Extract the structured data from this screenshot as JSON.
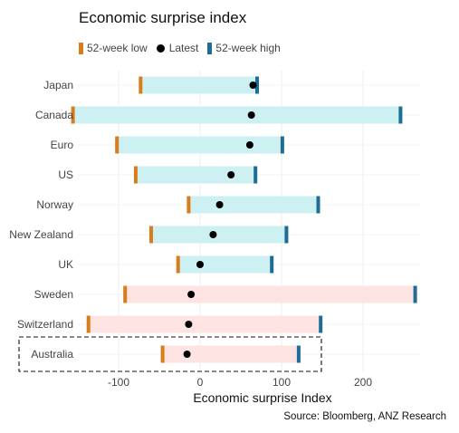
{
  "chart_data": {
    "type": "range-dot",
    "title": "Economic surprise index",
    "xlabel": "Economic surprise Index",
    "ylabel": "",
    "xlim": [
      -170,
      270
    ],
    "xticks": [
      -100,
      0,
      100,
      200
    ],
    "xtick_labels": [
      "-100",
      "0",
      "100",
      "200"
    ],
    "legend": {
      "placement": "top-left",
      "entries": [
        {
          "name": "52-week low",
          "color": "#d97d1a",
          "marker": "bar"
        },
        {
          "name": "Latest",
          "color": "#000000",
          "marker": "dot"
        },
        {
          "name": "52-week high",
          "color": "#1f6d96",
          "marker": "bar"
        }
      ]
    },
    "positive_fill": "#cdf0f3",
    "negative_fill": "#fde3e2",
    "highlight": "Australia",
    "countries": [
      {
        "name": "Japan",
        "low": -73,
        "latest": 65,
        "high": 70
      },
      {
        "name": "Canada",
        "low": -156,
        "latest": 63,
        "high": 246
      },
      {
        "name": "Euro",
        "low": -102,
        "latest": 61,
        "high": 101
      },
      {
        "name": "US",
        "low": -79,
        "latest": 38,
        "high": 68
      },
      {
        "name": "Norway",
        "low": -14,
        "latest": 24,
        "high": 145
      },
      {
        "name": "New Zealand",
        "low": -60,
        "latest": 16,
        "high": 106
      },
      {
        "name": "UK",
        "low": -27,
        "latest": 0,
        "high": 88
      },
      {
        "name": "Sweden",
        "low": -92,
        "latest": -11,
        "high": 264
      },
      {
        "name": "Switzerland",
        "low": -137,
        "latest": -14,
        "high": 148
      },
      {
        "name": "Australia",
        "low": -46,
        "latest": -16,
        "high": 121
      }
    ]
  },
  "source": "Source: Bloomberg, ANZ Research"
}
